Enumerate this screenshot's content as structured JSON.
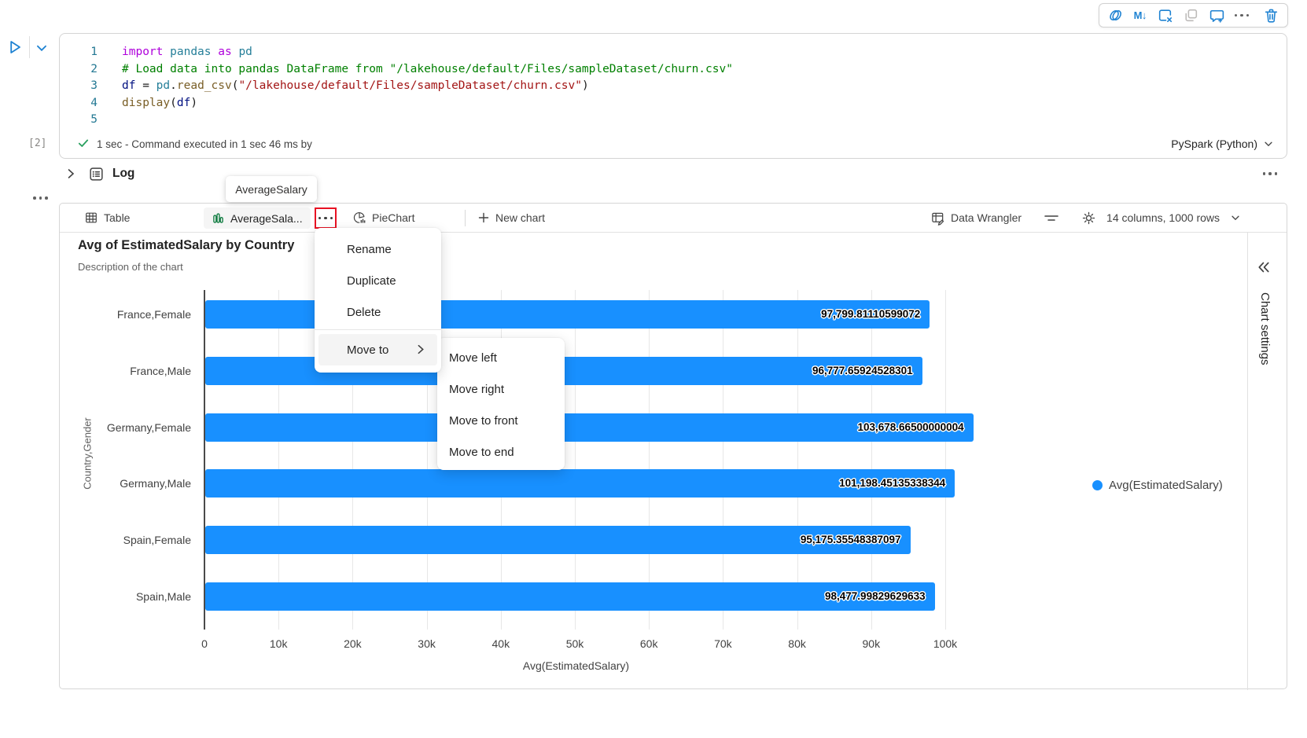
{
  "colors": {
    "bar": "#1890ff",
    "icon_blue": "#1e82d2",
    "tab_icon_green": "#107c41",
    "highlight_red": "#e81123",
    "check_green": "#2aa05f"
  },
  "cell_toolbar": {
    "markdown_glyph": "M↓"
  },
  "code_cell": {
    "execution_count": "[2]",
    "lines": [
      {
        "num": "1",
        "tokens": [
          [
            "import",
            "kw"
          ],
          [
            " ",
            "pl"
          ],
          [
            "pandas",
            "mod"
          ],
          [
            " ",
            "pl"
          ],
          [
            "as",
            "kw"
          ],
          [
            " ",
            "pl"
          ],
          [
            "pd",
            "mod"
          ]
        ]
      },
      {
        "num": "2",
        "tokens": [
          [
            "# Load data into pandas DataFrame from \"/lakehouse/default/Files/sampleDataset/churn.csv\"",
            "com"
          ]
        ]
      },
      {
        "num": "3",
        "tokens": [
          [
            "df",
            "var"
          ],
          [
            " = ",
            "pl"
          ],
          [
            "pd",
            "mod"
          ],
          [
            ".",
            "pl"
          ],
          [
            "read_csv",
            "fn"
          ],
          [
            "(",
            "pl"
          ],
          [
            "\"/lakehouse/default/Files/sampleDataset/churn.csv\"",
            "str"
          ],
          [
            ")",
            "pl"
          ]
        ]
      },
      {
        "num": "4",
        "tokens": [
          [
            "display",
            "fn"
          ],
          [
            "(",
            "pl"
          ],
          [
            "df",
            "var"
          ],
          [
            ")",
            "pl"
          ]
        ]
      },
      {
        "num": "5",
        "tokens": []
      }
    ],
    "status_text": "1 sec - Command executed in 1 sec 46 ms by",
    "kernel_label": "PySpark (Python)"
  },
  "log": {
    "label": "Log"
  },
  "tooltip": {
    "text": "AverageSalary"
  },
  "tab_bar": {
    "table_tab": "Table",
    "chart_tab": "AverageSala...",
    "pie_tab": "PieChart",
    "new_chart": "New chart",
    "data_wrangler": "Data Wrangler",
    "columns_info": "14 columns, 1000 rows"
  },
  "context_menu": {
    "items": [
      "Rename",
      "Duplicate",
      "Delete"
    ],
    "move_to_label": "Move to",
    "submenu_items": [
      "Move left",
      "Move right",
      "Move to front",
      "Move to end"
    ]
  },
  "chart": {
    "legend_label": "Avg(EstimatedSalary)",
    "settings_panel": "Chart settings"
  },
  "chart_data": {
    "type": "bar",
    "orientation": "horizontal",
    "title": "Avg of EstimatedSalary by Country",
    "subtitle": "Description of the chart",
    "categories": [
      "France,Female",
      "France,Male",
      "Germany,Female",
      "Germany,Male",
      "Spain,Female",
      "Spain,Male"
    ],
    "values": [
      97799.81110599072,
      96777.65924528301,
      103678.66500000004,
      101198.45135338344,
      95175.35548387097,
      98477.99829629633
    ],
    "value_labels": [
      "97,799.81110599072",
      "96,777.65924528301",
      "103,678.66500000004",
      "101,198.45135338344",
      "95,175.35548387097",
      "98,477.99829629633"
    ],
    "xlabel": "Avg(EstimatedSalary)",
    "ylabel": "Country,Gender",
    "x_ticks": [
      "0",
      "10k",
      "20k",
      "30k",
      "40k",
      "50k",
      "60k",
      "70k",
      "80k",
      "90k",
      "100k"
    ],
    "xlim": [
      0,
      100000
    ],
    "grid": true,
    "legend_position": "right",
    "series_name": "Avg(EstimatedSalary)",
    "bar_color": "#1890ff"
  }
}
